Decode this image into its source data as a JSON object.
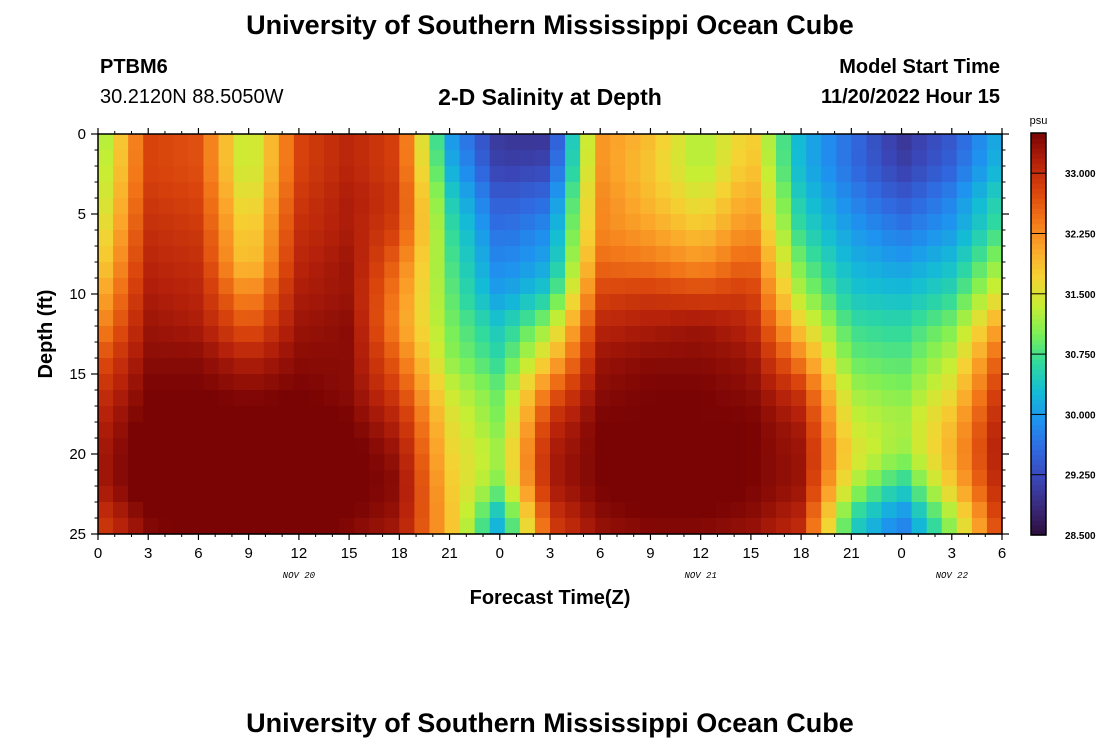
{
  "header": {
    "title": "University of Southern Mississippi Ocean Cube",
    "station": "PTBM6",
    "coords": "30.2120N  88.5050W",
    "subtitle": "2-D Salinity at Depth",
    "model_start_label": "Model Start Time",
    "model_start_value": "11/20/2022 Hour 15"
  },
  "footer": {
    "title": "University of Southern Mississippi Ocean Cube"
  },
  "chart_data": {
    "type": "heatmap",
    "title": "2-D Salinity at Depth",
    "xlabel": "Forecast Time(Z)",
    "ylabel": "Depth (ft)",
    "x_range_hours": [
      0,
      54
    ],
    "xticks": [
      "0",
      "3",
      "6",
      "9",
      "12",
      "15",
      "18",
      "21",
      "0",
      "3",
      "6",
      "9",
      "12",
      "15",
      "18",
      "21",
      "0",
      "3",
      "6"
    ],
    "xtick_hours": [
      0,
      3,
      6,
      9,
      12,
      15,
      18,
      21,
      24,
      27,
      30,
      33,
      36,
      39,
      42,
      45,
      48,
      51,
      54
    ],
    "day_labels": [
      {
        "label": "NOV 20",
        "hour": 12
      },
      {
        "label": "NOV 21",
        "hour": 36
      },
      {
        "label": "NOV 22",
        "hour": 51
      }
    ],
    "y_range_ft": [
      0,
      25
    ],
    "yticks": [
      "0",
      "5",
      "10",
      "15",
      "20",
      "25"
    ],
    "ytick_values": [
      0,
      5,
      10,
      15,
      20,
      25
    ],
    "colorbar": {
      "unit": "psu",
      "min": 28.5,
      "max": 33.5,
      "ticks": [
        "28.500",
        "29.250",
        "30.000",
        "30.750",
        "31.500",
        "32.250",
        "33.000"
      ],
      "tick_values": [
        28.5,
        29.25,
        30.0,
        30.75,
        31.5,
        32.25,
        33.0
      ],
      "colors": [
        "#2c0d3d",
        "#3a2a7a",
        "#3a47b8",
        "#3069e0",
        "#1e93ef",
        "#14bcd5",
        "#2fd99f",
        "#7bef57",
        "#c7ee33",
        "#f5d233",
        "#fba62a",
        "#f27518",
        "#d9440c",
        "#b5210a",
        "#7a0404"
      ]
    },
    "depth_levels_ft": [
      0,
      2,
      4,
      6,
      8,
      10,
      12,
      14,
      16,
      18,
      20,
      22,
      24,
      25
    ],
    "time_hours": [
      0,
      3,
      6,
      9,
      12,
      15,
      18,
      21,
      24,
      27,
      30,
      33,
      36,
      39,
      42,
      45,
      48,
      51,
      54
    ],
    "salinity_psu": [
      [
        31.0,
        32.8,
        32.7,
        31.2,
        32.8,
        33.1,
        32.8,
        30.0,
        29.0,
        29.0,
        32.2,
        31.9,
        31.2,
        31.8,
        30.2,
        29.6,
        29.0,
        29.4,
        30.2
      ],
      [
        31.1,
        32.8,
        32.7,
        31.2,
        32.8,
        33.1,
        32.8,
        30.2,
        29.1,
        29.2,
        32.2,
        31.8,
        31.2,
        31.9,
        30.2,
        29.6,
        29.1,
        29.5,
        30.3
      ],
      [
        31.2,
        32.9,
        32.8,
        31.4,
        32.9,
        33.2,
        32.9,
        30.5,
        29.4,
        29.6,
        32.3,
        31.9,
        31.5,
        32.1,
        30.4,
        29.8,
        29.4,
        29.8,
        30.6
      ],
      [
        31.4,
        33.0,
        32.9,
        31.6,
        33.0,
        33.2,
        32.8,
        30.7,
        29.6,
        29.9,
        32.3,
        32.1,
        31.8,
        32.3,
        30.6,
        30.0,
        29.7,
        30.0,
        30.8
      ],
      [
        31.6,
        33.1,
        33.0,
        31.7,
        33.1,
        33.3,
        32.5,
        30.8,
        29.8,
        30.1,
        32.5,
        32.4,
        32.2,
        32.6,
        30.9,
        30.2,
        30.0,
        30.3,
        31.2
      ],
      [
        31.9,
        33.2,
        33.1,
        32.2,
        33.2,
        33.3,
        32.3,
        30.9,
        30.0,
        30.5,
        32.8,
        32.9,
        32.8,
        32.9,
        31.2,
        30.4,
        30.3,
        30.6,
        31.6
      ],
      [
        32.2,
        33.3,
        33.2,
        32.6,
        33.3,
        33.4,
        32.2,
        31.0,
        30.4,
        31.2,
        33.1,
        33.2,
        33.3,
        33.1,
        31.7,
        30.7,
        30.6,
        31.0,
        32.2
      ],
      [
        32.6,
        33.4,
        33.4,
        33.1,
        33.4,
        33.4,
        32.5,
        31.1,
        30.6,
        31.8,
        33.3,
        33.4,
        33.4,
        33.3,
        32.3,
        30.9,
        30.8,
        31.3,
        32.7
      ],
      [
        32.9,
        33.5,
        33.5,
        33.4,
        33.5,
        33.4,
        32.8,
        31.4,
        30.9,
        32.5,
        33.4,
        33.5,
        33.5,
        33.4,
        32.9,
        31.2,
        31.0,
        31.6,
        33.0
      ],
      [
        33.1,
        33.6,
        33.6,
        33.6,
        33.6,
        33.5,
        33.1,
        31.6,
        31.0,
        33.0,
        33.5,
        33.5,
        33.5,
        33.5,
        33.2,
        31.4,
        31.2,
        31.9,
        33.2
      ],
      [
        33.2,
        33.7,
        33.7,
        33.7,
        33.9,
        33.6,
        33.3,
        31.7,
        31.2,
        33.2,
        33.5,
        33.6,
        33.6,
        33.5,
        33.3,
        31.6,
        31.1,
        32.0,
        33.3
      ],
      [
        33.2,
        33.7,
        33.8,
        33.8,
        34.0,
        33.6,
        33.4,
        31.8,
        31.0,
        33.2,
        33.5,
        33.6,
        33.6,
        33.5,
        33.3,
        31.3,
        30.5,
        31.8,
        33.2
      ],
      [
        32.9,
        33.5,
        33.6,
        33.6,
        33.7,
        33.5,
        33.3,
        31.9,
        30.2,
        32.9,
        33.4,
        33.5,
        33.5,
        33.4,
        33.1,
        30.6,
        29.8,
        31.2,
        33.0
      ],
      [
        32.8,
        33.4,
        33.5,
        33.5,
        33.6,
        33.4,
        33.2,
        31.9,
        30.1,
        32.8,
        33.3,
        33.4,
        33.4,
        33.3,
        33.0,
        30.5,
        29.7,
        31.1,
        32.9
      ]
    ]
  }
}
